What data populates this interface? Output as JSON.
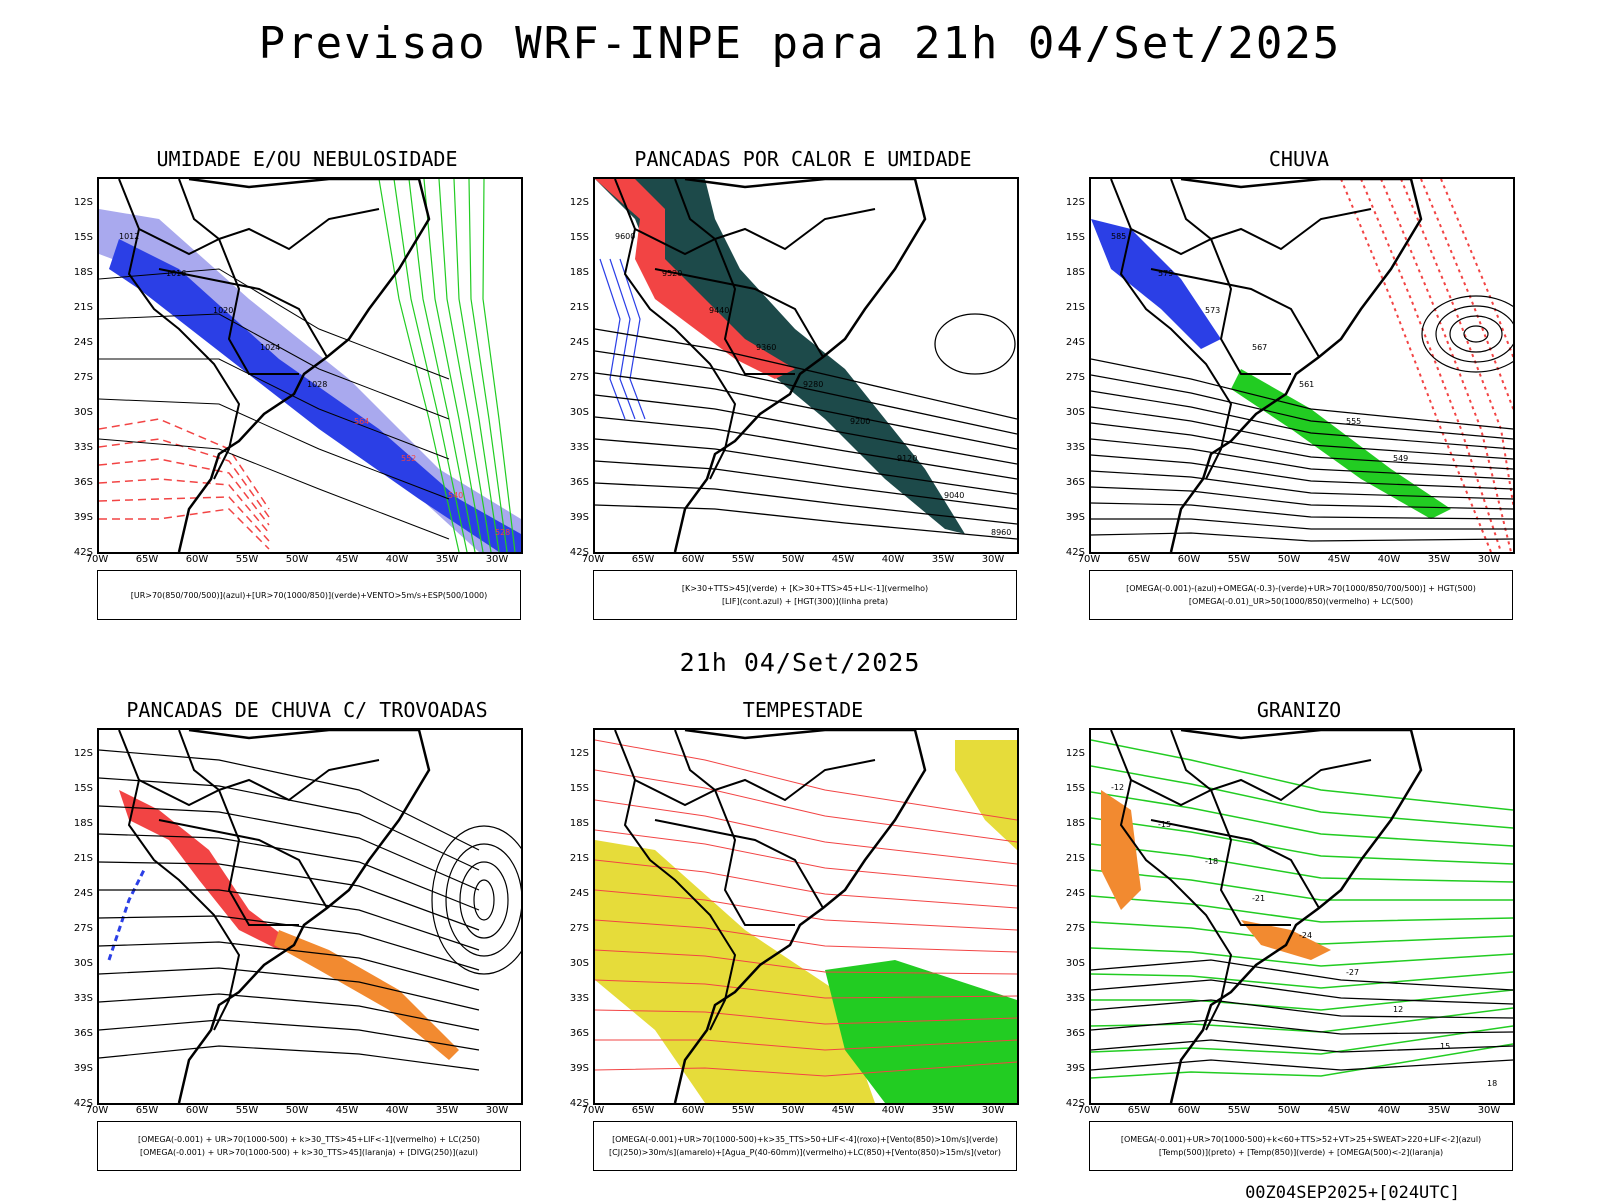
{
  "title": "Previsao WRF-INPE  para 21h 04/Set/2025",
  "mid_title": "21h 04/Set/2025",
  "footer": "00Z04SEP2025+[024UTC]",
  "axes": {
    "lat_labels": [
      "12S",
      "15S",
      "18S",
      "21S",
      "24S",
      "27S",
      "30S",
      "33S",
      "36S",
      "39S",
      "42S"
    ],
    "lon_labels": [
      "70W",
      "65W",
      "60W",
      "55W",
      "50W",
      "45W",
      "40W",
      "35W",
      "30W"
    ]
  },
  "colors": {
    "blue": "#2b3fe6",
    "lightblue": "#a9a9ee",
    "green": "#22cc22",
    "red": "#f24444",
    "darkteal": "#1d4a4a",
    "orange": "#f28a30",
    "yellow": "#e6dc3a"
  },
  "panels": [
    {
      "title": "UMIDADE E/OU NEBULOSIDADE",
      "legend": [
        "[UR>70(850/700/500)](azul)+[UR>70(1000/850)](verde)+VENTO>5m/s+ESP(500/1000)"
      ],
      "labels": [
        "1012",
        "1016",
        "1020",
        "1024",
        "1028",
        "564",
        "552",
        "540",
        "528"
      ]
    },
    {
      "title": "PANCADAS POR CALOR E UMIDADE",
      "legend": [
        "[K>30+TTS>45](verde) + [K>30+TTS>45+LI<-1](vermelho)",
        "[LIF](cont.azul) + [HGT(300)](linha preta)"
      ],
      "labels": [
        "9600",
        "9520",
        "9440",
        "9360",
        "9280",
        "9200",
        "9120",
        "9040",
        "8960"
      ]
    },
    {
      "title": "CHUVA",
      "legend": [
        "[OMEGA(-0.001)-(azul)+OMEGA(-0.3)-(verde)+UR>70(1000/850/700/500)] + HGT(500)",
        "[OMEGA(-0.01)_UR>50(1000/850)(vermelho) + LC(500)"
      ],
      "labels": [
        "585",
        "579",
        "573",
        "567",
        "561",
        "555",
        "549"
      ]
    },
    {
      "title": "PANCADAS DE CHUVA C/ TROVOADAS",
      "legend": [
        "[OMEGA(-0.001) + UR>70(1000-500) + k>30_TTS>45+LIF<-1](vermelho) + LC(250)",
        "[OMEGA(-0.001) + UR>70(1000-500) + k>30_TTS>45](laranja) + [DIVG(250)](azul)"
      ],
      "labels": []
    },
    {
      "title": "TEMPESTADE",
      "legend": [
        "[OMEGA(-0.001)+UR>70(1000-500)+k>35_TTS>50+LIF<-4](roxo)+[Vento(850)>10m/s](verde)",
        "[CJ(250)>30m/s](amarelo)+[Agua_P(40-60mm)](vermelho)+LC(850)+[Vento(850)>15m/s](vetor)"
      ],
      "labels": []
    },
    {
      "title": "GRANIZO",
      "legend": [
        "[OMEGA(-0.001)+UR>70(1000-500)+k<60+TTS>52+VT>25+SWEAT>220+LIF<-2](azul)",
        "[Temp(500)](preto) + [Temp(850)](verde) + [OMEGA(500)<-2](laranja)"
      ],
      "labels": [
        "-12",
        "-15",
        "-18",
        "-21",
        "-24",
        "-27",
        "12",
        "15",
        "18"
      ]
    }
  ]
}
